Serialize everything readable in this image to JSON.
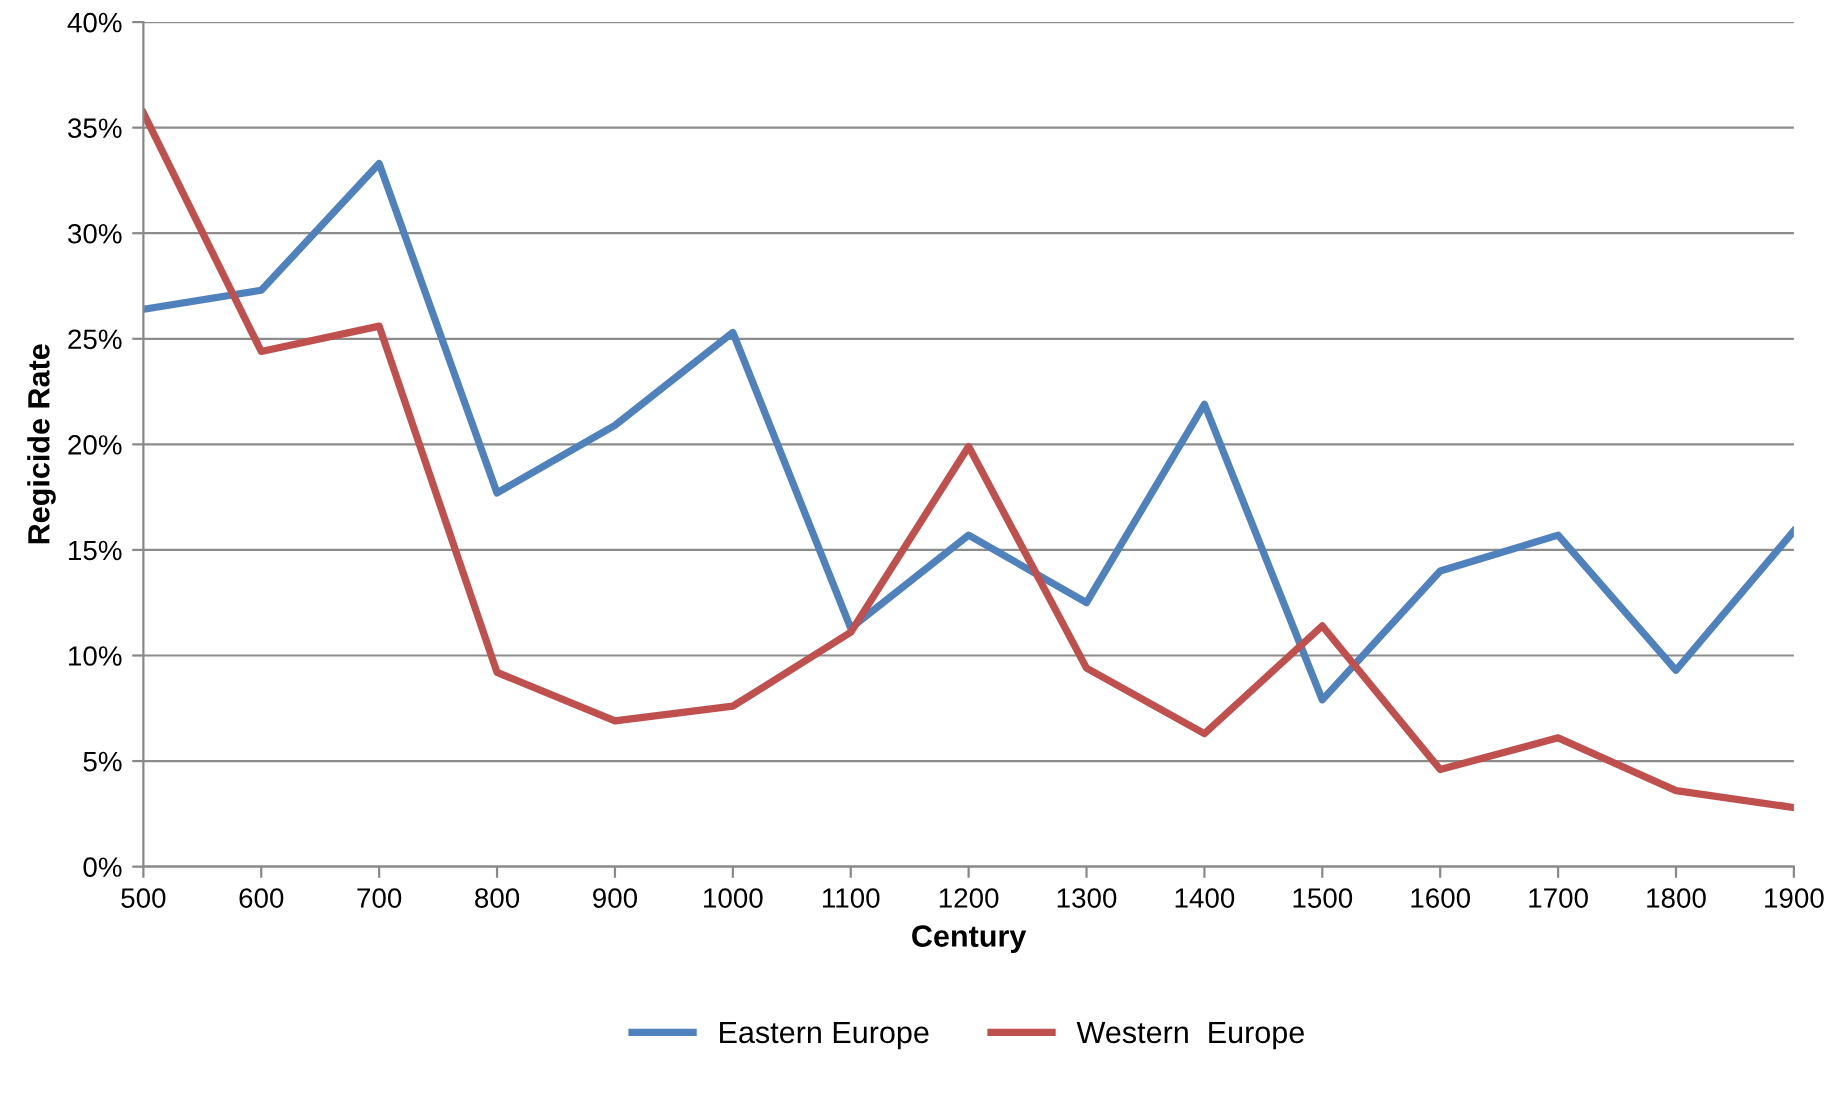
{
  "chart_data": {
    "type": "line",
    "xlabel": "Century",
    "ylabel": "Regicide Rate",
    "x": [
      500,
      600,
      700,
      800,
      900,
      1000,
      1100,
      1200,
      1300,
      1400,
      1500,
      1600,
      1700,
      1800,
      1900
    ],
    "series": [
      {
        "name": "Eastern Europe",
        "color": "#4f81bd",
        "values": [
          26.4,
          27.3,
          33.3,
          17.7,
          20.9,
          25.3,
          11.3,
          15.7,
          12.5,
          21.9,
          7.9,
          14.0,
          15.7,
          9.3,
          15.9
        ]
      },
      {
        "name": "Western  Europe",
        "color": "#c0504d",
        "values": [
          35.7,
          24.4,
          25.6,
          9.2,
          6.9,
          7.6,
          11.1,
          19.9,
          9.4,
          6.3,
          11.4,
          4.6,
          6.1,
          3.6,
          2.8
        ]
      }
    ],
    "xlim": [
      500,
      1900
    ],
    "xticks": [
      500,
      600,
      700,
      800,
      900,
      1000,
      1100,
      1200,
      1300,
      1400,
      1500,
      1600,
      1700,
      1800,
      1900
    ],
    "ylim": [
      0,
      40
    ],
    "yticks": [
      {
        "value": 0,
        "label": "0%"
      },
      {
        "value": 5,
        "label": "5%"
      },
      {
        "value": 10,
        "label": "10%"
      },
      {
        "value": 15,
        "label": "15%"
      },
      {
        "value": 20,
        "label": "20%"
      },
      {
        "value": 25,
        "label": "25%"
      },
      {
        "value": 30,
        "label": "30%"
      },
      {
        "value": 35,
        "label": "35%"
      },
      {
        "value": 40,
        "label": "40%"
      }
    ],
    "grid": "y",
    "legend": "bottom",
    "marker": "none",
    "line_style": "solid"
  }
}
